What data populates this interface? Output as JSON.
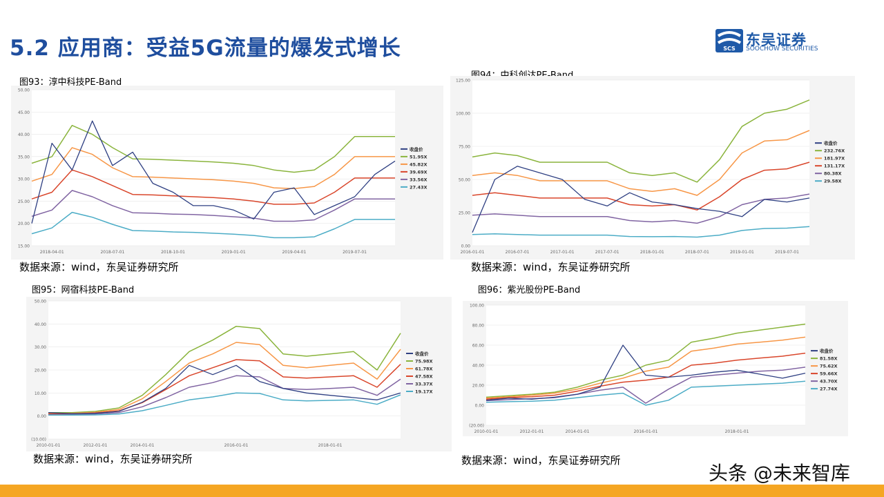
{
  "header": {
    "title": "5.2 应用商：受益5G流量的爆发式增长",
    "logo_cn": "东吴证券",
    "logo_en": "SOOCHOW SECURITIES",
    "logo_mark": "SCS"
  },
  "source_text": "数据来源：wind，东吴证券研究所",
  "watermark": "头条 @未来智库",
  "chart_data": [
    {
      "type": "line",
      "title": "图93：淳中科技PE-Band",
      "xlabel": "",
      "ylabel": "",
      "x": [
        "2018-03-01",
        "2018-04-01",
        "2018-05-01",
        "2018-06-01",
        "2018-07-01",
        "2018-08-01",
        "2018-09-01",
        "2018-10-01",
        "2018-11-01",
        "2018-12-01",
        "2019-01-01",
        "2019-02-01",
        "2019-03-01",
        "2019-04-01",
        "2019-05-01",
        "2019-06-01",
        "2019-07-01",
        "2019-08-01",
        "2019-09-01"
      ],
      "x_ticks": [
        "2018-04-01",
        "2018-07-01",
        "2018-10-01",
        "2019-01-01",
        "2019-04-01",
        "2019-07-01"
      ],
      "y_ticks": [
        "15.00",
        "20.00",
        "25.00",
        "30.00",
        "35.00",
        "40.00",
        "45.00",
        "50.00"
      ],
      "ylim": [
        15,
        50
      ],
      "legend_position": "right",
      "series": [
        {
          "name": "收盘价",
          "color": "#2e3f82",
          "values": [
            20,
            38,
            32,
            43,
            33,
            36,
            29,
            27,
            24,
            24,
            23,
            21,
            27,
            28,
            22,
            24,
            26,
            31,
            34
          ]
        },
        {
          "name": "51.95X",
          "color": "#8ab43c",
          "values": [
            33.5,
            35,
            42,
            40,
            37,
            34.5,
            34.4,
            34.2,
            34,
            33.8,
            33.5,
            33,
            32,
            31.5,
            32,
            35,
            39.5,
            39.5,
            39.5
          ]
        },
        {
          "name": "45.82X",
          "color": "#f79646",
          "values": [
            29.5,
            31,
            37,
            35.5,
            32.5,
            30.5,
            30.4,
            30.2,
            30,
            29.8,
            29.5,
            29,
            28,
            27.8,
            28.3,
            31,
            35,
            35,
            35
          ]
        },
        {
          "name": "39.69X",
          "color": "#d9452a",
          "values": [
            25.5,
            27,
            32,
            30.5,
            28.5,
            26.5,
            26.4,
            26.2,
            26,
            25.8,
            25.5,
            25,
            24.3,
            24.3,
            24.6,
            27,
            30.2,
            30.2,
            30.2
          ]
        },
        {
          "name": "33.56X",
          "color": "#8064a2",
          "values": [
            21.6,
            23,
            27.4,
            26,
            24,
            22.4,
            22.3,
            22.1,
            22,
            21.8,
            21.5,
            21.2,
            20.5,
            20.5,
            20.8,
            23,
            25.5,
            25.5,
            25.5
          ]
        },
        {
          "name": "27.43X",
          "color": "#4bacc6",
          "values": [
            17.7,
            19,
            22.5,
            21.4,
            19.8,
            18.4,
            18.3,
            18.1,
            18,
            17.8,
            17.6,
            17.3,
            16.8,
            16.8,
            17,
            18.8,
            20.9,
            20.9,
            20.9
          ]
        }
      ]
    },
    {
      "type": "line",
      "title": "图94：中科创达PE-Band",
      "xlabel": "",
      "ylabel": "",
      "x": [
        "2016-01-01",
        "2016-04-01",
        "2016-07-01",
        "2016-10-01",
        "2017-01-01",
        "2017-04-01",
        "2017-07-01",
        "2017-10-01",
        "2018-01-01",
        "2018-04-01",
        "2018-07-01",
        "2018-10-01",
        "2019-01-01",
        "2019-04-01",
        "2019-07-01",
        "2019-09-01"
      ],
      "x_ticks": [
        "2016-01-01",
        "2016-07-01",
        "2017-01-01",
        "2017-07-01",
        "2018-01-01",
        "2018-07-01",
        "2019-01-01",
        "2019-07-01"
      ],
      "y_ticks": [
        "0.00",
        "25.00",
        "50.00",
        "75.00",
        "100.00",
        "125.00"
      ],
      "ylim": [
        0,
        125
      ],
      "legend_position": "right",
      "series": [
        {
          "name": "收盘价",
          "color": "#2e3f82",
          "values": [
            10,
            50,
            60,
            55,
            50,
            35,
            30,
            40,
            33,
            31,
            28,
            26,
            22,
            35,
            33,
            36
          ]
        },
        {
          "name": "232.76X",
          "color": "#8ab43c",
          "values": [
            67,
            70,
            68,
            63,
            63,
            63,
            63,
            55,
            53,
            55,
            48,
            65,
            90,
            100,
            103,
            110
          ]
        },
        {
          "name": "181.97X",
          "color": "#f79646",
          "values": [
            53,
            55,
            53,
            49,
            49,
            49,
            49,
            43,
            41,
            43,
            38,
            50,
            70,
            79,
            80,
            87
          ]
        },
        {
          "name": "131.17X",
          "color": "#d9452a",
          "values": [
            38,
            40,
            38,
            36,
            36,
            36,
            36,
            31,
            30,
            31,
            27,
            37,
            50,
            57,
            58,
            63
          ]
        },
        {
          "name": "80.38X",
          "color": "#8064a2",
          "values": [
            23,
            24,
            23,
            22,
            22,
            22,
            22,
            19,
            18,
            19,
            17,
            22,
            31,
            35,
            36,
            39
          ]
        },
        {
          "name": "29.58X",
          "color": "#4bacc6",
          "values": [
            8.5,
            9,
            8.5,
            8,
            8,
            8,
            8,
            7,
            6.8,
            7,
            6.5,
            8,
            11.5,
            13,
            13.3,
            14.5
          ]
        }
      ]
    },
    {
      "type": "line",
      "title": "图95：网宿科技PE-Band",
      "xlabel": "",
      "ylabel": "",
      "x": [
        "2010-01-01",
        "2011-01-01",
        "2012-01-01",
        "2013-01-01",
        "2014-01-01",
        "2014-07-01",
        "2015-01-01",
        "2015-06-01",
        "2016-01-01",
        "2016-07-01",
        "2017-01-01",
        "2017-07-01",
        "2018-01-01",
        "2018-07-01",
        "2019-01-01",
        "2019-07-01"
      ],
      "x_ticks": [
        "2010-01-01",
        "2012-01-01",
        "2014-01-01",
        "2016-01-01",
        "2018-01-01"
      ],
      "y_ticks": [
        "(10.00)",
        "0.00",
        "10.00",
        "20.00",
        "30.00",
        "40.00",
        "50.00"
      ],
      "ylim": [
        -10,
        50
      ],
      "legend_position": "right",
      "series": [
        {
          "name": "收盘价",
          "color": "#2e3f82",
          "values": [
            1.5,
            1,
            1.2,
            2,
            6,
            12,
            22,
            18,
            22,
            15,
            12,
            10,
            9,
            8,
            7,
            10
          ]
        },
        {
          "name": "75.98X",
          "color": "#8ab43c",
          "values": [
            1.5,
            1.5,
            2,
            3.5,
            9,
            18,
            28,
            33,
            39,
            38,
            27,
            26,
            27,
            28,
            20,
            36
          ]
        },
        {
          "name": "61.78X",
          "color": "#f79646",
          "values": [
            1.2,
            1.2,
            1.6,
            2.8,
            7.5,
            15,
            23,
            27,
            32,
            31,
            22,
            21,
            22,
            23,
            16,
            29
          ]
        },
        {
          "name": "47.58X",
          "color": "#d9452a",
          "values": [
            0.9,
            0.9,
            1.3,
            2.2,
            5.8,
            11.5,
            17.5,
            21,
            24.5,
            24,
            17,
            16.5,
            17,
            17.5,
            12.5,
            22.5
          ]
        },
        {
          "name": "33.37X",
          "color": "#8064a2",
          "values": [
            0.6,
            0.6,
            0.9,
            1.5,
            4,
            8,
            12.5,
            14.5,
            17.5,
            17,
            12,
            11.5,
            12,
            12.5,
            9,
            16
          ]
        },
        {
          "name": "19.17X",
          "color": "#4bacc6",
          "values": [
            0.4,
            0.4,
            0.5,
            0.9,
            2.3,
            4.6,
            7,
            8.3,
            10,
            9.8,
            7,
            6.6,
            6.8,
            7,
            5.1,
            9.2
          ]
        }
      ]
    },
    {
      "type": "line",
      "title": "图96：紫光股份PE-Band",
      "xlabel": "",
      "ylabel": "",
      "x": [
        "2010-01-01",
        "2011-01-01",
        "2012-01-01",
        "2013-01-01",
        "2014-01-01",
        "2015-01-01",
        "2015-06-01",
        "2016-01-01",
        "2016-07-01",
        "2017-01-01",
        "2017-07-01",
        "2018-01-01",
        "2018-07-01",
        "2019-01-01",
        "2019-07-01"
      ],
      "x_ticks": [
        "2010-01-01",
        "2012-01-01",
        "2014-01-01",
        "2016-01-01",
        "2018-01-01"
      ],
      "y_ticks": [
        "(20.00)",
        "0.00",
        "20.00",
        "40.00",
        "60.00",
        "80.00",
        "100.00"
      ],
      "ylim": [
        -20,
        100
      ],
      "legend_position": "right",
      "series": [
        {
          "name": "收盘价",
          "color": "#2e3f82",
          "values": [
            5,
            7,
            6,
            8,
            11,
            18,
            60,
            30,
            28,
            30,
            33,
            35,
            31,
            27,
            32
          ]
        },
        {
          "name": "81.58X",
          "color": "#8ab43c",
          "values": [
            8,
            9.5,
            11,
            13,
            18,
            25,
            30,
            40,
            45,
            63,
            67,
            72,
            75,
            78,
            81
          ]
        },
        {
          "name": "75.62X",
          "color": "#f79646",
          "values": [
            7,
            8.5,
            10,
            12,
            16,
            22,
            27,
            34,
            38,
            54,
            57,
            61,
            63,
            65,
            68
          ]
        },
        {
          "name": "59.66X",
          "color": "#d9452a",
          "values": [
            6,
            7.5,
            8.5,
            10,
            14,
            19,
            23,
            25,
            28,
            40,
            42,
            45,
            47,
            49,
            52
          ]
        },
        {
          "name": "43.70X",
          "color": "#8064a2",
          "values": [
            4.5,
            5.5,
            6.5,
            7.5,
            11,
            15,
            18,
            2,
            16,
            28,
            30,
            32,
            34,
            35,
            38
          ]
        },
        {
          "name": "27.74X",
          "color": "#4bacc6",
          "values": [
            3,
            3.5,
            4,
            5,
            7.5,
            10,
            12,
            0,
            5,
            18,
            19,
            20,
            21,
            22,
            24
          ]
        }
      ]
    }
  ]
}
